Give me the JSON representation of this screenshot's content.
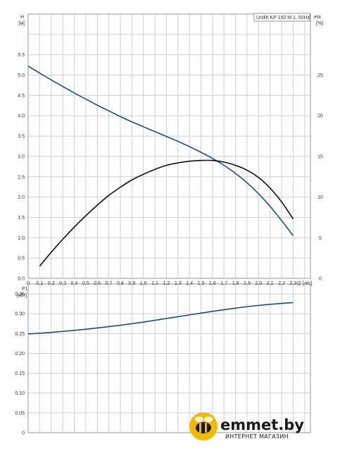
{
  "legend_label": "Unilift KP 150 M 1, 50Hz",
  "top_chart": {
    "y_label_symbol": "H",
    "y_label_unit": "[м]",
    "y2_label_symbol": "eta",
    "y2_label_unit": "[%]",
    "x_label_symbol": "Q",
    "x_label_unit": "[л/с]",
    "y_ticks": [
      "0.0",
      "0.5",
      "1.0",
      "1.5",
      "2.0",
      "2.5",
      "3.0",
      "3.5",
      "4.0",
      "4.5",
      "5.0",
      "5.5"
    ],
    "y2_ticks": [
      "0",
      "5",
      "10",
      "15",
      "20",
      "25"
    ],
    "x_ticks": [
      "0",
      "0.1",
      "0.2",
      "0.3",
      "0.4",
      "0.5",
      "0.6",
      "0.7",
      "0.8",
      "0.9",
      "1.0",
      "1.1",
      "1.2",
      "1.3",
      "1.4",
      "1.5",
      "1.6",
      "1.7",
      "1.8",
      "1.9",
      "2.0",
      "2.1",
      "2.2",
      "2.3"
    ]
  },
  "bottom_chart": {
    "y_label_symbol": "P1",
    "y_label_unit": "[кВт]",
    "y_ticks": [
      "0",
      "0.05",
      "0.10",
      "0.15",
      "0.20",
      "0.25",
      "0.30",
      "0.35"
    ]
  },
  "watermark": {
    "brand": "emmet.by",
    "tagline": "ИНТЕРНЕТ МАГАЗИН",
    "logo_color": "#f5b800"
  },
  "chart_data": [
    {
      "type": "line",
      "title": "",
      "xlabel": "Q [л/с]",
      "ylabel": "H [м]",
      "y2label": "eta [%]",
      "xlim": [
        0,
        2.45
      ],
      "ylim": [
        0,
        6.5
      ],
      "y2lim": [
        0,
        32.5
      ],
      "grid": true,
      "legend_position": "top-right",
      "series": [
        {
          "name": "H",
          "axis": "left",
          "color": "#1f4e7a",
          "x": [
            0,
            0.1,
            0.2,
            0.3,
            0.4,
            0.5,
            0.6,
            0.7,
            0.8,
            0.9,
            1.0,
            1.1,
            1.2,
            1.3,
            1.4,
            1.5,
            1.6,
            1.7,
            1.8,
            1.9,
            2.0,
            2.1,
            2.2,
            2.3
          ],
          "y": [
            5.22,
            5.05,
            4.88,
            4.72,
            4.56,
            4.41,
            4.26,
            4.12,
            3.98,
            3.85,
            3.73,
            3.61,
            3.49,
            3.37,
            3.24,
            3.1,
            2.95,
            2.78,
            2.58,
            2.35,
            2.08,
            1.77,
            1.42,
            1.05
          ]
        },
        {
          "name": "eta",
          "axis": "right",
          "color": "#111111",
          "x": [
            0.1,
            0.2,
            0.3,
            0.4,
            0.5,
            0.6,
            0.7,
            0.8,
            0.9,
            1.0,
            1.1,
            1.2,
            1.3,
            1.4,
            1.5,
            1.6,
            1.7,
            1.8,
            1.9,
            2.0,
            2.1,
            2.2,
            2.3
          ],
          "y": [
            1.5,
            3.2,
            4.8,
            6.3,
            7.7,
            9.0,
            10.2,
            11.2,
            12.1,
            12.8,
            13.4,
            13.9,
            14.2,
            14.4,
            14.5,
            14.5,
            14.3,
            13.9,
            13.3,
            12.4,
            11.1,
            9.4,
            7.3
          ]
        }
      ]
    },
    {
      "type": "line",
      "title": "",
      "xlabel": "Q [л/с]",
      "ylabel": "P1 [кВт]",
      "xlim": [
        0,
        2.45
      ],
      "ylim": [
        0,
        0.375
      ],
      "grid": true,
      "series": [
        {
          "name": "P1",
          "color": "#1f4e7a",
          "x": [
            0,
            0.2,
            0.4,
            0.6,
            0.8,
            1.0,
            1.2,
            1.4,
            1.6,
            1.8,
            2.0,
            2.2,
            2.3
          ],
          "y": [
            0.249,
            0.253,
            0.258,
            0.264,
            0.271,
            0.279,
            0.288,
            0.297,
            0.306,
            0.314,
            0.321,
            0.326,
            0.328
          ]
        }
      ]
    }
  ]
}
